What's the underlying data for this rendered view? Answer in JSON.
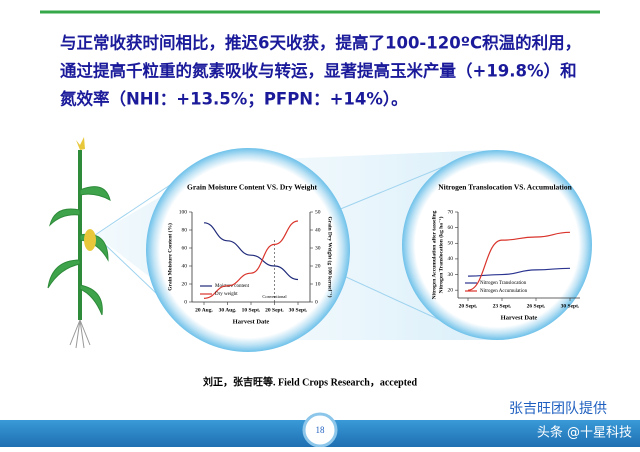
{
  "header": {
    "lines": [
      "与正常收获时间相比，推迟6天收获，提高了100-120ºC积温的利用，",
      "通过提高千粒重的氮素吸收与转运，显著提高玉米产量（+19.8%）和",
      "氮效率（NHI：+13.5%；PFPN：+14%）。"
    ]
  },
  "chart_data": [
    {
      "type": "line",
      "title": "Grain Moisture Content VS. Dry Weight",
      "xlabel": "Harvest Date",
      "ylabel": "Grain Moisture Content (%)",
      "y2label": "Grain Dry Weight (g 100 kernel⁻¹)",
      "categories": [
        "20 Aug.",
        "30 Aug.",
        "10 Sept.",
        "20 Sept.",
        "30 Sept."
      ],
      "ylim": [
        0,
        100
      ],
      "yticks": [
        0,
        20,
        40,
        60,
        80,
        100
      ],
      "y2lim": [
        0,
        50
      ],
      "y2ticks": [
        0,
        10,
        20,
        30,
        40,
        50
      ],
      "annotation": {
        "text": "Conventional",
        "at": 3
      },
      "series": [
        {
          "name": "Moisture content",
          "color": "#1f2a7a",
          "values": [
            88,
            68,
            52,
            40,
            25
          ]
        },
        {
          "name": "Dry weight",
          "color": "#d9342b",
          "axis": "y2",
          "values": [
            2,
            9,
            16,
            32,
            45
          ]
        }
      ]
    },
    {
      "type": "line",
      "title": "Nitrogen Translocation VS. Accumulation",
      "xlabel": "Harvest Date",
      "ylabel": [
        "Nitrogen Accumulation after tasseling",
        "Nitrogen Translocation (kg ha⁻¹)"
      ],
      "categories": [
        "20 Sept.",
        "23 Sept.",
        "26 Sept.",
        "30 Sept."
      ],
      "ylim": [
        15,
        70
      ],
      "yticks": [
        20,
        30,
        40,
        50,
        60,
        70
      ],
      "series": [
        {
          "name": "Nitrogen Translocation",
          "color": "#2b3590",
          "values": [
            29,
            30,
            33,
            34
          ]
        },
        {
          "name": "Nitrogen Accumulation",
          "color": "#d9342b",
          "values": [
            20,
            52,
            54,
            57
          ]
        }
      ]
    }
  ],
  "citation": "刘正，张吉旺等. Field Crops Research，accepted",
  "credit": "张吉旺团队提供",
  "page_number": "18",
  "watermark": "头条 @十星科技"
}
